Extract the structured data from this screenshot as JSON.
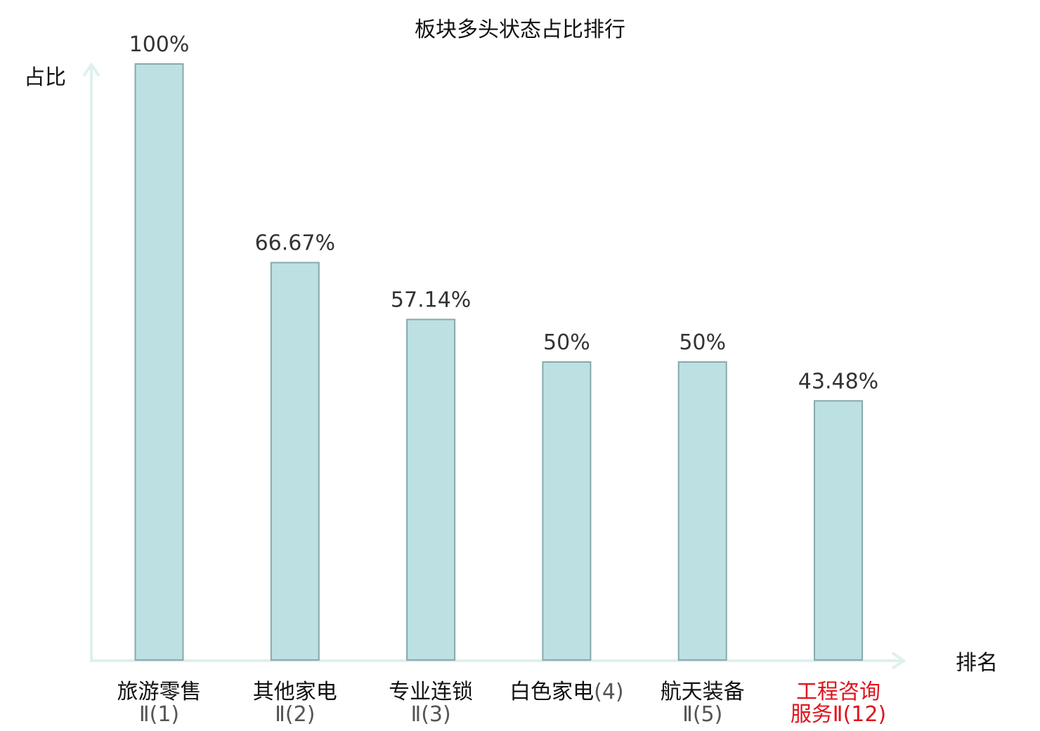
{
  "chart_data": {
    "type": "bar",
    "title": "板块多头状态占比排行",
    "ylabel": "占比",
    "xlabel": "排名",
    "categories": [
      {
        "name": "旅游零售",
        "rank": "Ⅱ(1)",
        "highlight": false
      },
      {
        "name": "其他家电",
        "rank": "Ⅱ(2)",
        "highlight": false
      },
      {
        "name": "专业连锁",
        "rank": "Ⅱ(3)",
        "highlight": false
      },
      {
        "name": "白色家电",
        "rank": "(4)",
        "highlight": false
      },
      {
        "name": "航天装备",
        "rank": "Ⅱ(5)",
        "highlight": false
      },
      {
        "name": "工程咨询服务",
        "rank": "Ⅱ(12)",
        "highlight": true
      }
    ],
    "values": [
      100,
      66.67,
      57.14,
      50,
      50,
      43.48
    ],
    "value_labels": [
      "100%",
      "66.67%",
      "57.14%",
      "50%",
      "50%",
      "43.48%"
    ],
    "ylim": [
      0,
      100
    ],
    "grid": false,
    "legend": "none",
    "colors": {
      "bar_fill": "#bde0e3",
      "bar_stroke": "#86a9ad",
      "axis": "#dff0ee",
      "text": "#111111",
      "value_text": "#333333",
      "rank_text": "#555555",
      "highlight": "#e0141e"
    }
  }
}
